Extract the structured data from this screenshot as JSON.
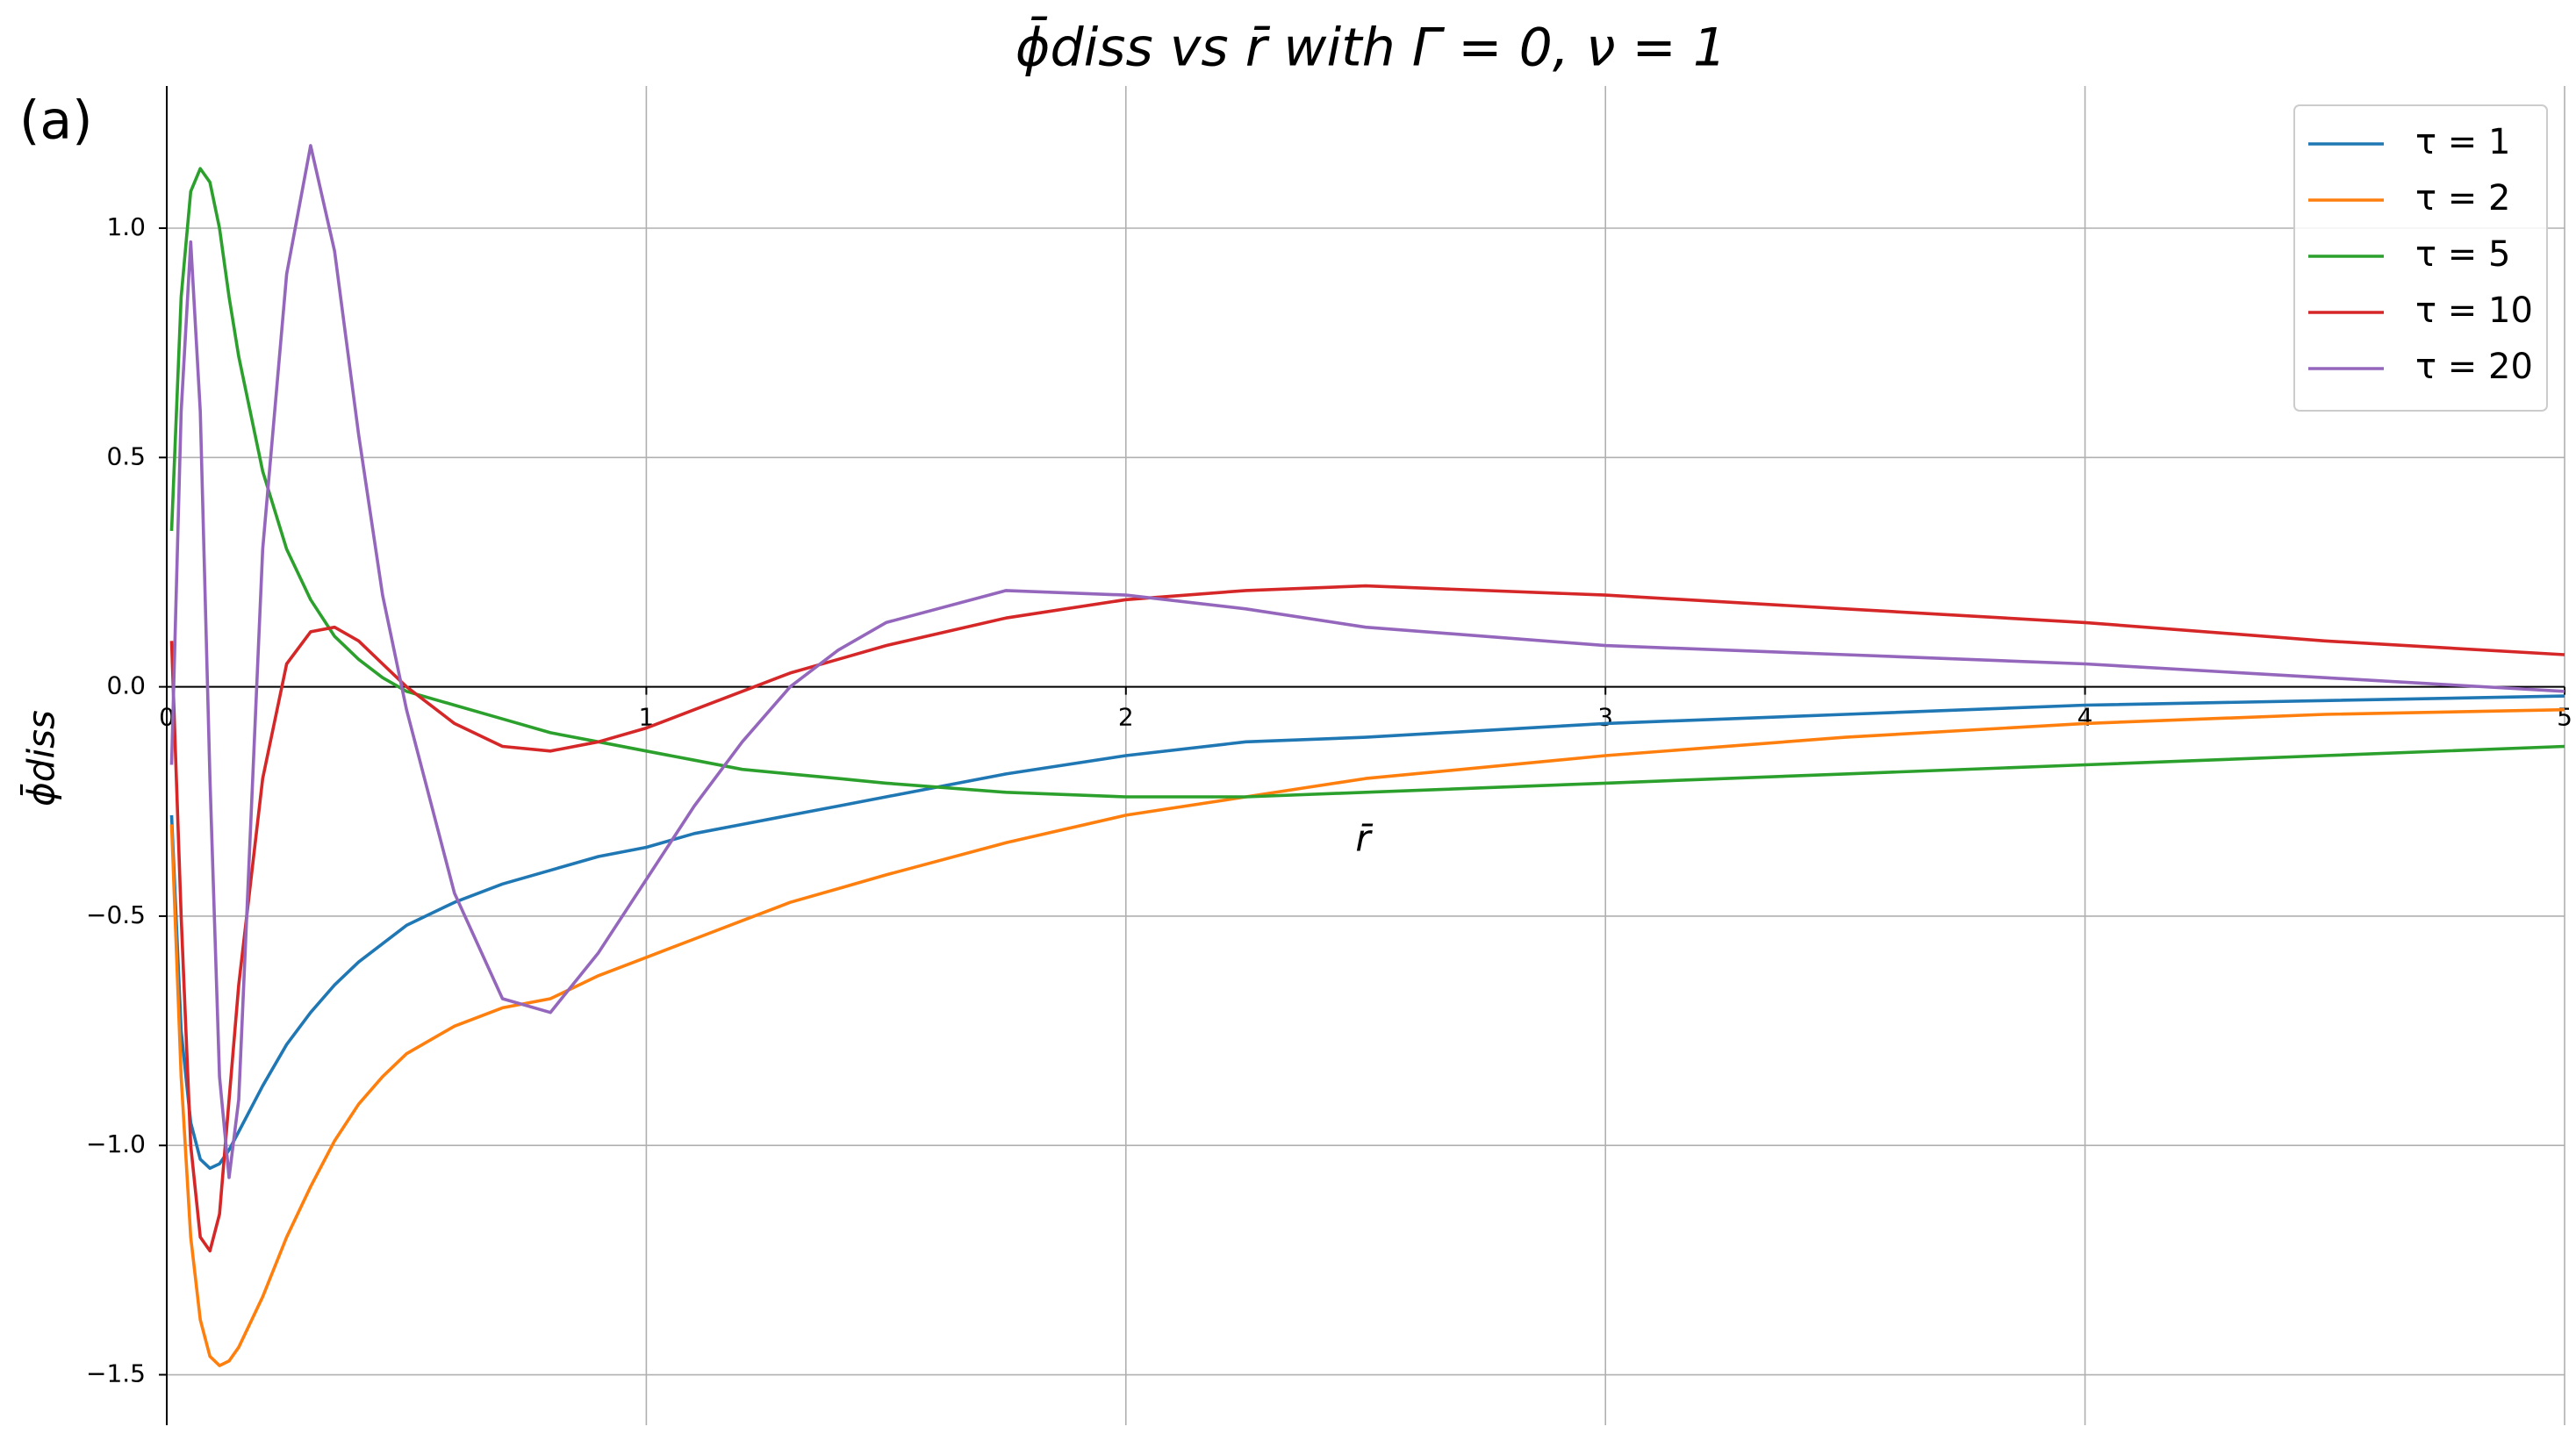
{
  "chart_data": {
    "type": "line",
    "title": "ϕ̄diss  vs  r̄  with  Γ = 0, ν = 1",
    "annotation": "(a)",
    "x_label": "r̄",
    "y_label": "ϕ̄diss",
    "xlim": [
      0,
      5
    ],
    "ylim": [
      -1.61,
      1.31
    ],
    "xticks": [
      0,
      1,
      2,
      3,
      4,
      5
    ],
    "yticks": [
      {
        "value": -1.5,
        "label": "−1.5"
      },
      {
        "value": -1,
        "label": "−1.0"
      },
      {
        "value": -0.5,
        "label": "−0.5"
      },
      {
        "value": 0,
        "label": "0.0"
      },
      0.5,
      {
        "value": 1,
        "label": "1.0"
      }
    ],
    "grid": true,
    "legend": "upper-right",
    "x": [
      0.01,
      0.03,
      0.05,
      0.07,
      0.09,
      0.11,
      0.13,
      0.15,
      0.2,
      0.25,
      0.3,
      0.35,
      0.4,
      0.45,
      0.5,
      0.6,
      0.7,
      0.8,
      0.9,
      1.0,
      1.1,
      1.2,
      1.3,
      1.4,
      1.5,
      1.75,
      2,
      2.25,
      2.5,
      3,
      3.5,
      4,
      4.5,
      5
    ],
    "series": [
      {
        "name": "τ = 1",
        "color": "#1f77b4",
        "values": [
          -0.28,
          -0.75,
          -0.95,
          -1.03,
          -1.05,
          -1.04,
          -1.01,
          -0.97,
          -0.87,
          -0.78,
          -0.71,
          -0.65,
          -0.6,
          -0.56,
          -0.52,
          -0.47,
          -0.43,
          -0.4,
          -0.37,
          -0.35,
          -0.32,
          -0.3,
          -0.28,
          -0.26,
          -0.24,
          -0.19,
          -0.15,
          -0.12,
          -0.11,
          -0.08,
          -0.06,
          -0.04,
          -0.03,
          -0.02
        ]
      },
      {
        "name": "τ = 2",
        "color": "#ff7f0e",
        "values": [
          -0.3,
          -0.85,
          -1.2,
          -1.38,
          -1.46,
          -1.48,
          -1.47,
          -1.44,
          -1.33,
          -1.2,
          -1.09,
          -0.99,
          -0.91,
          -0.85,
          -0.8,
          -0.74,
          -0.7,
          -0.68,
          -0.63,
          -0.59,
          -0.55,
          -0.51,
          -0.47,
          -0.44,
          -0.41,
          -0.34,
          -0.28,
          -0.24,
          -0.2,
          -0.15,
          -0.11,
          -0.08,
          -0.06,
          -0.05
        ]
      },
      {
        "name": "τ = 5",
        "color": "#2ca02c",
        "values": [
          0.34,
          0.85,
          1.08,
          1.13,
          1.1,
          1.0,
          0.85,
          0.72,
          0.47,
          0.3,
          0.19,
          0.11,
          0.06,
          0.02,
          -0.01,
          -0.04,
          -0.07,
          -0.1,
          -0.12,
          -0.14,
          -0.16,
          -0.18,
          -0.19,
          -0.2,
          -0.21,
          -0.23,
          -0.24,
          -0.24,
          -0.23,
          -0.21,
          -0.19,
          -0.17,
          -0.15,
          -0.13
        ]
      },
      {
        "name": "τ = 10",
        "color": "#d62728",
        "values": [
          0.1,
          -0.5,
          -1.0,
          -1.2,
          -1.23,
          -1.15,
          -0.9,
          -0.65,
          -0.2,
          0.05,
          0.12,
          0.13,
          0.1,
          0.05,
          0.0,
          -0.08,
          -0.13,
          -0.14,
          -0.12,
          -0.09,
          -0.05,
          -0.01,
          0.03,
          0.06,
          0.09,
          0.15,
          0.19,
          0.21,
          0.22,
          0.2,
          0.17,
          0.14,
          0.1,
          0.07
        ]
      },
      {
        "name": "τ = 20",
        "color": "#9467bd",
        "values": [
          -0.17,
          0.6,
          0.97,
          0.6,
          -0.2,
          -0.85,
          -1.07,
          -0.9,
          0.3,
          0.9,
          1.18,
          0.95,
          0.55,
          0.2,
          -0.05,
          -0.45,
          -0.68,
          -0.71,
          -0.58,
          -0.42,
          -0.26,
          -0.12,
          0.0,
          0.08,
          0.14,
          0.21,
          0.2,
          0.17,
          0.13,
          0.09,
          0.07,
          0.05,
          0.02,
          -0.01
        ]
      }
    ]
  }
}
